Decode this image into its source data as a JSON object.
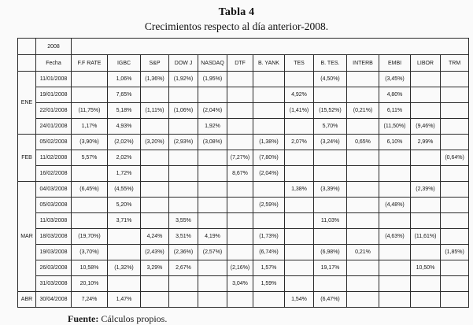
{
  "title": "Tabla 4",
  "subtitle": "Crecimientos respecto al día anterior-2008.",
  "year_label": "2008",
  "columns": [
    "Fecha",
    "F.F RATE",
    "IGBC",
    "S&P",
    "DOW J",
    "NASDAQ",
    "DTF",
    "B. YANK",
    "TES",
    "B. TES.",
    "INTERB",
    "EMBI",
    "LIBOR",
    "TRM"
  ],
  "groups": [
    {
      "month": "ENE",
      "rows": [
        {
          "fecha": "11/01/2008",
          "values": [
            "",
            "1,06%",
            "(1,36%)",
            "(1,92%)",
            "(1,95%)",
            "",
            "",
            "",
            "(4,50%)",
            "",
            "(3,45%)",
            "",
            ""
          ]
        },
        {
          "fecha": "19/01/2008",
          "values": [
            "",
            "7,65%",
            "",
            "",
            "",
            "",
            "",
            "4,92%",
            "",
            "",
            "4,80%",
            "",
            ""
          ]
        },
        {
          "fecha": "22/01/2008",
          "values": [
            "(11,75%)",
            "5,18%",
            "(1,11%)",
            "(1,06%)",
            "(2,04%)",
            "",
            "",
            "(1,41%)",
            "(15,52%)",
            "(0,21%)",
            "6,11%",
            "",
            ""
          ]
        },
        {
          "fecha": "24/01/2008",
          "values": [
            "1,17%",
            "4,93%",
            "",
            "",
            "1,92%",
            "",
            "",
            "",
            "5,70%",
            "",
            "(11,50%)",
            "(9,46%)",
            ""
          ]
        }
      ]
    },
    {
      "month": "FEB",
      "rows": [
        {
          "fecha": "05/02/2008",
          "values": [
            "(3,90%)",
            "(2,02%)",
            "(3,20%)",
            "(2,93%)",
            "(3,08%)",
            "",
            "(1,38%)",
            "2,07%",
            "(3,24%)",
            "0,65%",
            "6,10%",
            "2,99%",
            ""
          ]
        },
        {
          "fecha": "11/02/2008",
          "values": [
            "5,57%",
            "2,02%",
            "",
            "",
            "",
            "(7,27%)",
            "(7,80%)",
            "",
            "",
            "",
            "",
            "",
            "(0,64%)"
          ]
        },
        {
          "fecha": "16/02/2008",
          "values": [
            "",
            "1,72%",
            "",
            "",
            "",
            "8,67%",
            "(2,04%)",
            "",
            "",
            "",
            "",
            "",
            ""
          ]
        }
      ]
    },
    {
      "month": "MAR",
      "rows": [
        {
          "fecha": "04/03/2008",
          "values": [
            "(6,45%)",
            "(4,55%)",
            "",
            "",
            "",
            "",
            "",
            "1,38%",
            "(3,39%)",
            "",
            "",
            "(2,39%)",
            ""
          ]
        },
        {
          "fecha": "05/03/2008",
          "values": [
            "",
            "5,20%",
            "",
            "",
            "",
            "",
            "(2,59%)",
            "",
            "",
            "",
            "(4,48%)",
            "",
            ""
          ]
        },
        {
          "fecha": "11/03/2008",
          "values": [
            "",
            "3,71%",
            "",
            "3,55%",
            "",
            "",
            "",
            "",
            "11,03%",
            "",
            "",
            "",
            ""
          ]
        },
        {
          "fecha": "18/03/2008",
          "values": [
            "(19,70%)",
            "",
            "4,24%",
            "3,51%",
            "4,19%",
            "",
            "(1,73%)",
            "",
            "",
            "",
            "(4,63%)",
            "(11,61%)",
            ""
          ]
        },
        {
          "fecha": "19/03/2008",
          "values": [
            "(3,70%)",
            "",
            "(2,43%)",
            "(2,36%)",
            "(2,57%)",
            "",
            "(6,74%)",
            "",
            "(6,98%)",
            "0,21%",
            "",
            "",
            "(1,85%)"
          ]
        },
        {
          "fecha": "26/03/2008",
          "values": [
            "10,58%",
            "(1,32%)",
            "3,29%",
            "2,67%",
            "",
            "(2,16%)",
            "1,57%",
            "",
            "19,17%",
            "",
            "",
            "10,50%",
            ""
          ]
        },
        {
          "fecha": "31/03/2008",
          "values": [
            "20,10%",
            "",
            "",
            "",
            "",
            "3,04%",
            "1,59%",
            "",
            "",
            "",
            "",
            "",
            ""
          ]
        }
      ]
    },
    {
      "month": "ABR",
      "rows": [
        {
          "fecha": "30/04/2008",
          "values": [
            "7,24%",
            "1,47%",
            "",
            "",
            "",
            "",
            "",
            "1,54%",
            "(6,47%)",
            "",
            "",
            "",
            ""
          ]
        }
      ]
    }
  ],
  "footer": {
    "label": "Fuente:",
    "text": " Cálculos propios."
  }
}
